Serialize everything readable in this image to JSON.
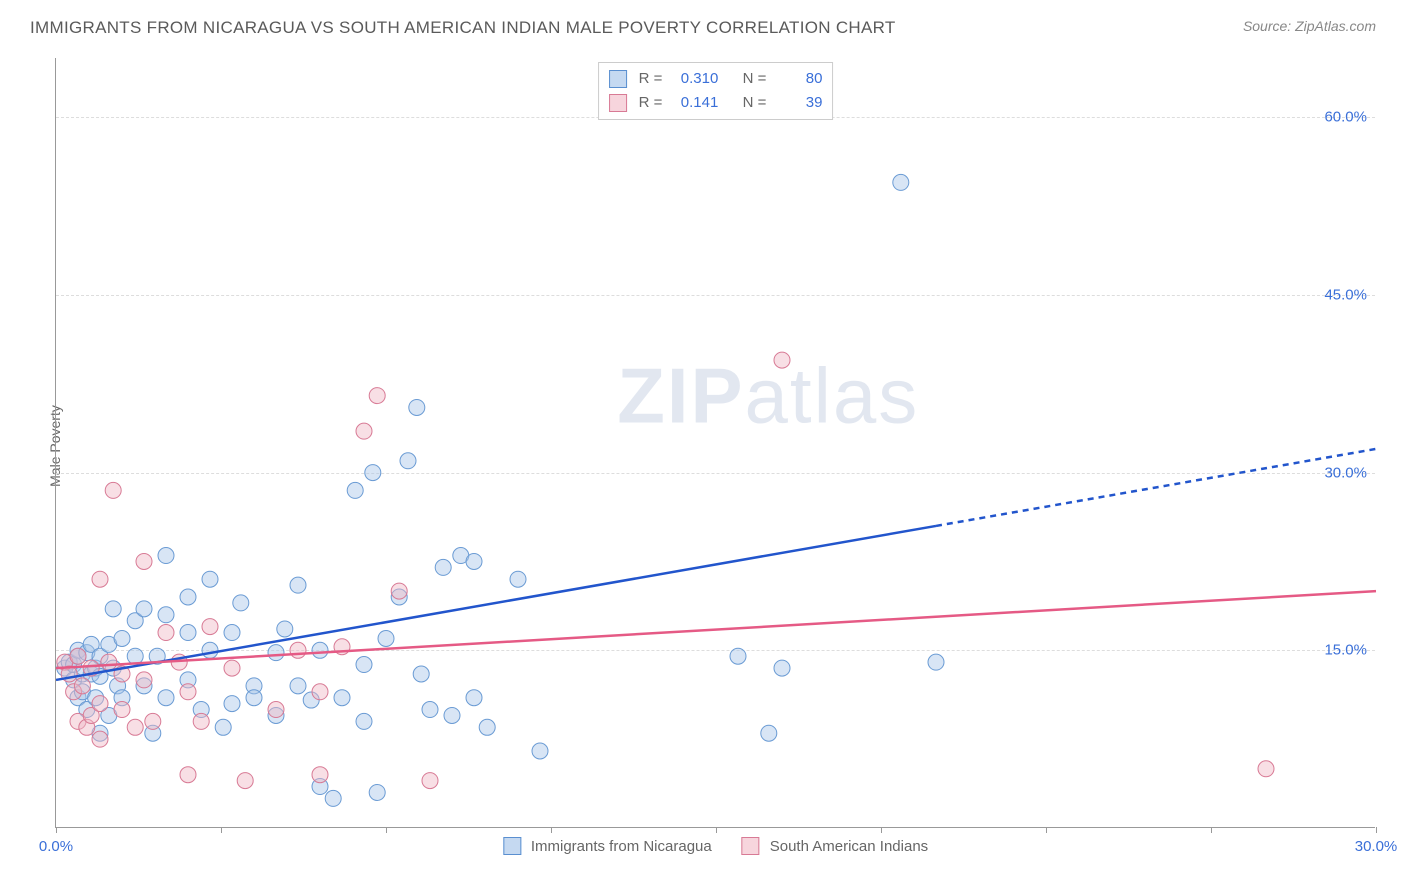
{
  "title": "IMMIGRANTS FROM NICARAGUA VS SOUTH AMERICAN INDIAN MALE POVERTY CORRELATION CHART",
  "source_prefix": "Source: ",
  "source_name": "ZipAtlas.com",
  "y_axis_label": "Male Poverty",
  "watermark_bold": "ZIP",
  "watermark_rest": "atlas",
  "chart": {
    "type": "scatter",
    "xlim": [
      0,
      30
    ],
    "ylim": [
      0,
      65
    ],
    "y_ticks": [
      15,
      30,
      45,
      60
    ],
    "y_tick_labels": [
      "15.0%",
      "30.0%",
      "45.0%",
      "60.0%"
    ],
    "x_ticks": [
      0,
      3.75,
      7.5,
      11.25,
      15,
      18.75,
      22.5,
      26.25,
      30
    ],
    "x_tick_labels_shown": {
      "0": "0.0%",
      "30": "30.0%"
    },
    "grid_color": "#dddddd",
    "axis_color": "#999999",
    "background_color": "#ffffff",
    "marker_radius": 8,
    "marker_opacity": 0.45,
    "line_width": 2.5,
    "series": [
      {
        "name": "Immigrants from Nicaragua",
        "color_fill": "#a8c5e8",
        "color_stroke": "#6a9bd4",
        "line_color": "#2255cc",
        "R": "0.310",
        "N": "80",
        "trend": {
          "x1": 0,
          "y1": 12.5,
          "x2_solid": 20,
          "y2_solid": 25.5,
          "x2": 30,
          "y2": 32
        },
        "points": [
          [
            0.2,
            13.5
          ],
          [
            0.3,
            14.0
          ],
          [
            0.4,
            12.5
          ],
          [
            0.4,
            13.8
          ],
          [
            0.5,
            15.0
          ],
          [
            0.5,
            11.0
          ],
          [
            0.5,
            14.5
          ],
          [
            0.6,
            13.0
          ],
          [
            0.6,
            11.5
          ],
          [
            0.7,
            14.8
          ],
          [
            0.7,
            10.0
          ],
          [
            0.8,
            13.0
          ],
          [
            0.8,
            15.5
          ],
          [
            0.9,
            11.0
          ],
          [
            0.9,
            13.5
          ],
          [
            1.0,
            8.0
          ],
          [
            1.0,
            14.5
          ],
          [
            1.0,
            12.8
          ],
          [
            1.2,
            15.5
          ],
          [
            1.2,
            9.5
          ],
          [
            1.3,
            18.5
          ],
          [
            1.3,
            13.5
          ],
          [
            1.4,
            12.0
          ],
          [
            1.5,
            16.0
          ],
          [
            1.5,
            11.0
          ],
          [
            1.8,
            14.5
          ],
          [
            1.8,
            17.5
          ],
          [
            2.0,
            12.0
          ],
          [
            2.0,
            18.5
          ],
          [
            2.2,
            8.0
          ],
          [
            2.3,
            14.5
          ],
          [
            2.5,
            18.0
          ],
          [
            2.5,
            11.0
          ],
          [
            2.5,
            23.0
          ],
          [
            3.0,
            16.5
          ],
          [
            3.0,
            19.5
          ],
          [
            3.0,
            12.5
          ],
          [
            3.3,
            10.0
          ],
          [
            3.5,
            15.0
          ],
          [
            3.5,
            21.0
          ],
          [
            3.8,
            8.5
          ],
          [
            4.0,
            16.5
          ],
          [
            4.0,
            10.5
          ],
          [
            4.2,
            19.0
          ],
          [
            4.5,
            12.0
          ],
          [
            4.5,
            11.0
          ],
          [
            5.0,
            14.8
          ],
          [
            5.0,
            9.5
          ],
          [
            5.2,
            16.8
          ],
          [
            5.5,
            12.0
          ],
          [
            5.5,
            20.5
          ],
          [
            5.8,
            10.8
          ],
          [
            6.0,
            15.0
          ],
          [
            6.0,
            3.5
          ],
          [
            6.3,
            2.5
          ],
          [
            6.5,
            11.0
          ],
          [
            6.8,
            28.5
          ],
          [
            7.0,
            13.8
          ],
          [
            7.0,
            9.0
          ],
          [
            7.2,
            30.0
          ],
          [
            7.3,
            3.0
          ],
          [
            7.5,
            16.0
          ],
          [
            7.8,
            19.5
          ],
          [
            8.0,
            31.0
          ],
          [
            8.2,
            35.5
          ],
          [
            8.3,
            13.0
          ],
          [
            8.5,
            10.0
          ],
          [
            8.8,
            22.0
          ],
          [
            9.0,
            9.5
          ],
          [
            9.2,
            23.0
          ],
          [
            9.5,
            22.5
          ],
          [
            9.5,
            11.0
          ],
          [
            9.8,
            8.5
          ],
          [
            10.5,
            21.0
          ],
          [
            11.0,
            6.5
          ],
          [
            15.5,
            14.5
          ],
          [
            16.2,
            8.0
          ],
          [
            16.5,
            13.5
          ],
          [
            19.2,
            54.5
          ],
          [
            20.0,
            14.0
          ]
        ]
      },
      {
        "name": "South American Indians",
        "color_fill": "#f0b8c5",
        "color_stroke": "#d87a95",
        "line_color": "#e55a85",
        "R": "0.141",
        "N": "39",
        "trend": {
          "x1": 0,
          "y1": 13.5,
          "x2_solid": 30,
          "y2_solid": 20.0,
          "x2": 30,
          "y2": 20.0
        },
        "points": [
          [
            0.2,
            14.0
          ],
          [
            0.3,
            13.0
          ],
          [
            0.4,
            11.5
          ],
          [
            0.5,
            9.0
          ],
          [
            0.5,
            14.5
          ],
          [
            0.6,
            12.0
          ],
          [
            0.7,
            8.5
          ],
          [
            0.8,
            13.5
          ],
          [
            0.8,
            9.5
          ],
          [
            1.0,
            21.0
          ],
          [
            1.0,
            10.5
          ],
          [
            1.0,
            7.5
          ],
          [
            1.2,
            14.0
          ],
          [
            1.3,
            28.5
          ],
          [
            1.5,
            13.0
          ],
          [
            1.5,
            10.0
          ],
          [
            1.8,
            8.5
          ],
          [
            2.0,
            22.5
          ],
          [
            2.0,
            12.5
          ],
          [
            2.2,
            9.0
          ],
          [
            2.5,
            16.5
          ],
          [
            2.8,
            14.0
          ],
          [
            3.0,
            11.5
          ],
          [
            3.0,
            4.5
          ],
          [
            3.3,
            9.0
          ],
          [
            3.5,
            17.0
          ],
          [
            4.0,
            13.5
          ],
          [
            4.3,
            4.0
          ],
          [
            5.0,
            10.0
          ],
          [
            5.5,
            15.0
          ],
          [
            6.0,
            11.5
          ],
          [
            6.5,
            15.3
          ],
          [
            6.0,
            4.5
          ],
          [
            7.0,
            33.5
          ],
          [
            7.3,
            36.5
          ],
          [
            7.8,
            20.0
          ],
          [
            8.5,
            4.0
          ],
          [
            16.5,
            39.5
          ],
          [
            27.5,
            5.0
          ]
        ]
      }
    ]
  },
  "stats_label_R": "R =",
  "stats_label_N": "N ="
}
